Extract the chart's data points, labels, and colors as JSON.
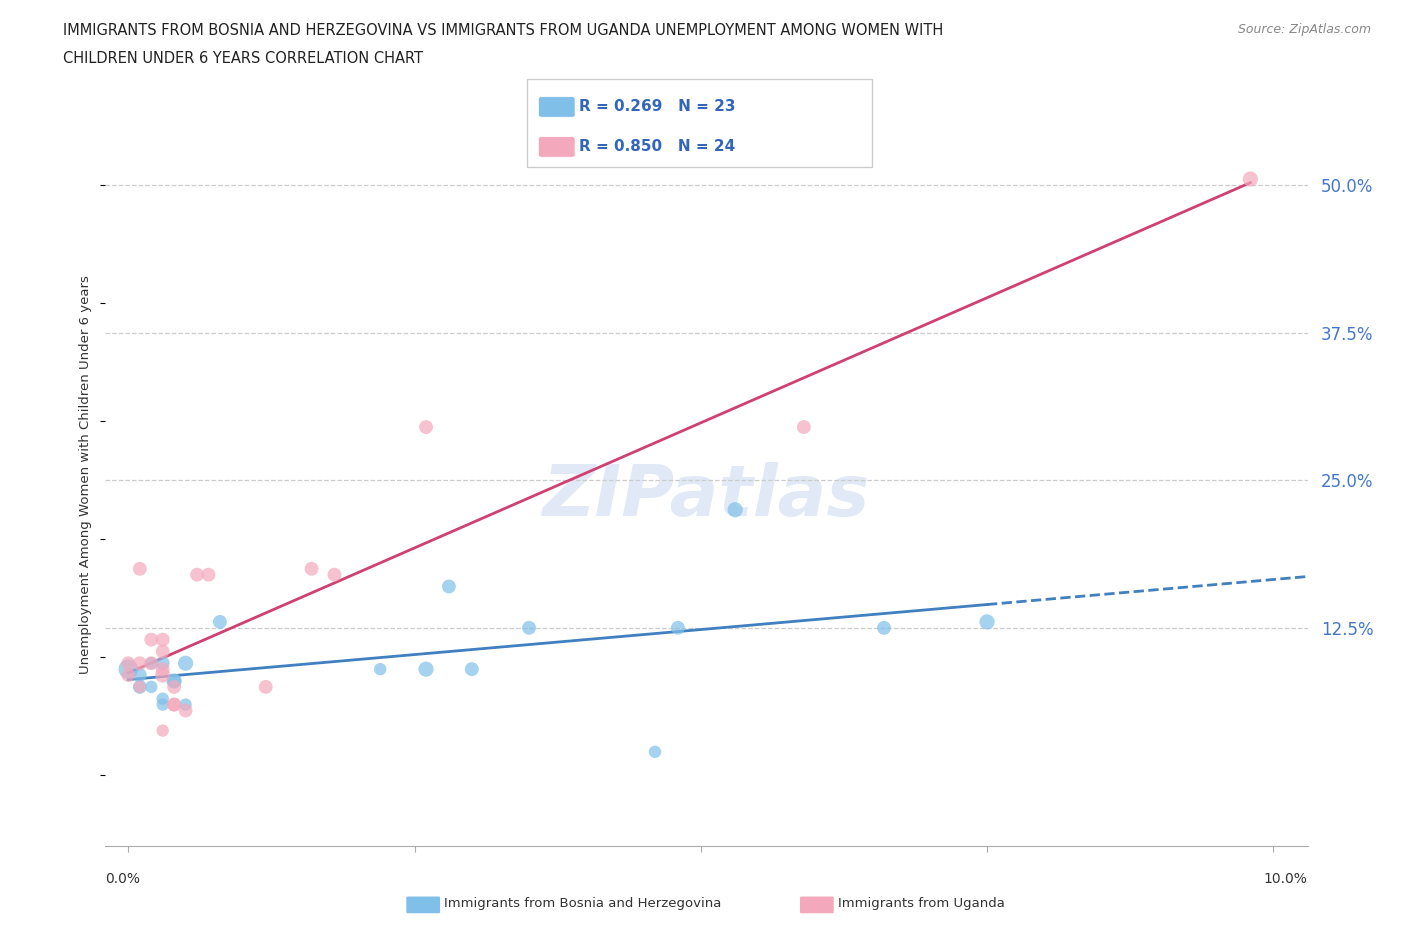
{
  "title_line1": "IMMIGRANTS FROM BOSNIA AND HERZEGOVINA VS IMMIGRANTS FROM UGANDA UNEMPLOYMENT AMONG WOMEN WITH",
  "title_line2": "CHILDREN UNDER 6 YEARS CORRELATION CHART",
  "source": "Source: ZipAtlas.com",
  "ylabel": "Unemployment Among Women with Children Under 6 years",
  "yticks": [
    "50.0%",
    "37.5%",
    "25.0%",
    "12.5%"
  ],
  "ytick_vals": [
    0.5,
    0.375,
    0.25,
    0.125
  ],
  "legend_bosnia_R": "0.269",
  "legend_bosnia_N": "23",
  "legend_uganda_R": "0.850",
  "legend_uganda_N": "24",
  "color_bosnia": "#7fbfe8",
  "color_uganda": "#f4a8bc",
  "color_trendline_bosnia": "#4080c0",
  "color_trendline_uganda": "#d04070",
  "background_color": "#ffffff",
  "bosnia_x": [
    0.0,
    0.001,
    0.001,
    0.002,
    0.002,
    0.003,
    0.003,
    0.003,
    0.004,
    0.004,
    0.005,
    0.005,
    0.008,
    0.022,
    0.026,
    0.028,
    0.03,
    0.035,
    0.046,
    0.048,
    0.053,
    0.066,
    0.075
  ],
  "bosnia_y": [
    0.09,
    0.085,
    0.075,
    0.095,
    0.075,
    0.095,
    0.065,
    0.06,
    0.08,
    0.08,
    0.06,
    0.095,
    0.13,
    0.09,
    0.09,
    0.16,
    0.09,
    0.125,
    0.02,
    0.125,
    0.225,
    0.125,
    0.13
  ],
  "bosnia_sizes": [
    200,
    100,
    100,
    80,
    80,
    100,
    80,
    80,
    120,
    100,
    80,
    120,
    100,
    80,
    120,
    100,
    100,
    100,
    80,
    100,
    120,
    100,
    120
  ],
  "uganda_x": [
    0.0,
    0.0,
    0.001,
    0.001,
    0.001,
    0.002,
    0.002,
    0.003,
    0.003,
    0.003,
    0.003,
    0.003,
    0.004,
    0.004,
    0.004,
    0.005,
    0.006,
    0.007,
    0.012,
    0.016,
    0.018,
    0.026,
    0.059,
    0.098
  ],
  "uganda_y": [
    0.085,
    0.095,
    0.075,
    0.095,
    0.175,
    0.095,
    0.115,
    0.085,
    0.09,
    0.105,
    0.115,
    0.038,
    0.075,
    0.06,
    0.06,
    0.055,
    0.17,
    0.17,
    0.075,
    0.175,
    0.17,
    0.295,
    0.295,
    0.505
  ],
  "uganda_sizes": [
    100,
    100,
    80,
    100,
    100,
    100,
    100,
    120,
    100,
    100,
    100,
    80,
    100,
    100,
    100,
    100,
    100,
    100,
    100,
    100,
    100,
    100,
    100,
    120
  ],
  "xlim_min": -0.002,
  "xlim_max": 0.103,
  "ylim_min": -0.06,
  "ylim_max": 0.57
}
